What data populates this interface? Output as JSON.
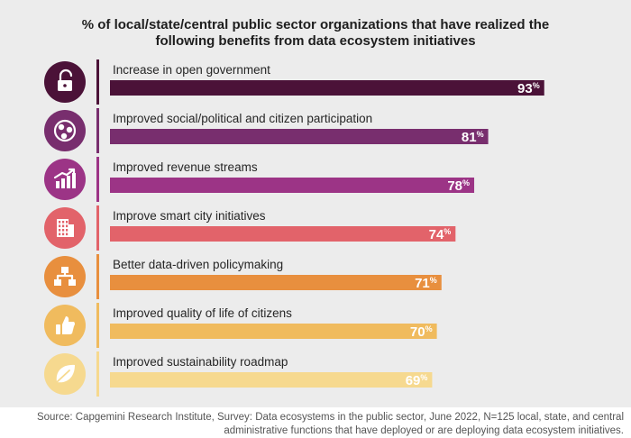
{
  "title": {
    "line1": "% of local/state/central public sector organizations that have realized the",
    "line2": "following benefits from data ecosystem initiatives"
  },
  "footer": {
    "line1": "Source: Capgemini Research Institute, Survey: Data ecosystems in the public sector, June 2022, N=125 local, state, and central",
    "line2": "administrative functions that have deployed or are deploying data ecosystem initiatives."
  },
  "chart_data": {
    "type": "bar",
    "orientation": "horizontal",
    "value_suffix": "%",
    "categories": [
      "Increase in open government",
      "Improved social/political and citizen participation",
      "Improved revenue streams",
      "Improve smart city initiatives",
      "Better data-driven policymaking",
      "Improved quality of life of citizens",
      "Improved sustainability roadmap"
    ],
    "values": [
      93,
      81,
      78,
      74,
      71,
      70,
      69
    ],
    "colors": [
      "#4b1238",
      "#782e6e",
      "#9c3486",
      "#e2636a",
      "#e88f3e",
      "#f0bb5e",
      "#f6d98f"
    ],
    "icons": [
      "unlock-icon",
      "participation-network-icon",
      "revenue-growth-icon",
      "smart-city-building-icon",
      "policy-flowchart-icon",
      "thumbs-up-icon",
      "leaf-icon"
    ]
  }
}
